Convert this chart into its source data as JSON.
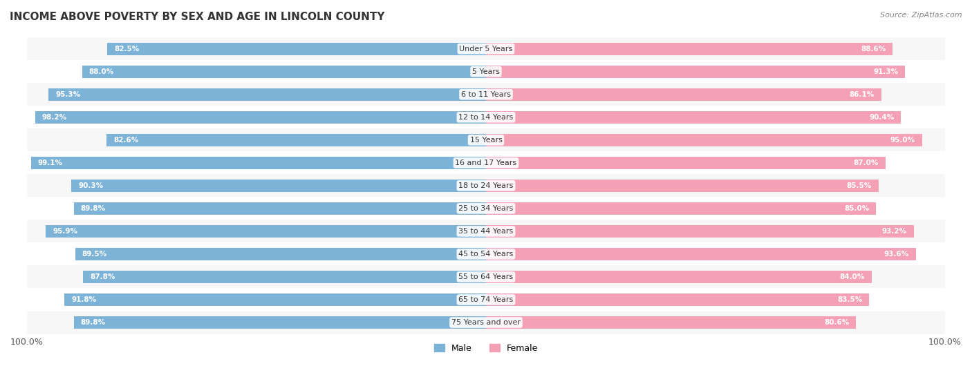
{
  "title": "INCOME ABOVE POVERTY BY SEX AND AGE IN LINCOLN COUNTY",
  "source": "Source: ZipAtlas.com",
  "categories": [
    "Under 5 Years",
    "5 Years",
    "6 to 11 Years",
    "12 to 14 Years",
    "15 Years",
    "16 and 17 Years",
    "18 to 24 Years",
    "25 to 34 Years",
    "35 to 44 Years",
    "45 to 54 Years",
    "55 to 64 Years",
    "65 to 74 Years",
    "75 Years and over"
  ],
  "male_values": [
    82.5,
    88.0,
    95.3,
    98.2,
    82.6,
    99.1,
    90.3,
    89.8,
    95.9,
    89.5,
    87.8,
    91.8,
    89.8
  ],
  "female_values": [
    88.6,
    91.3,
    86.1,
    90.4,
    95.0,
    87.0,
    85.5,
    85.0,
    93.2,
    93.6,
    84.0,
    83.5,
    80.6
  ],
  "male_color": "#7eb3d8",
  "female_color": "#f4a0b5",
  "male_label": "Male",
  "female_label": "Female",
  "axis_label": "100.0%",
  "bar_height": 0.55,
  "row_bg_colors": [
    "#f7f7f7",
    "#ffffff"
  ]
}
